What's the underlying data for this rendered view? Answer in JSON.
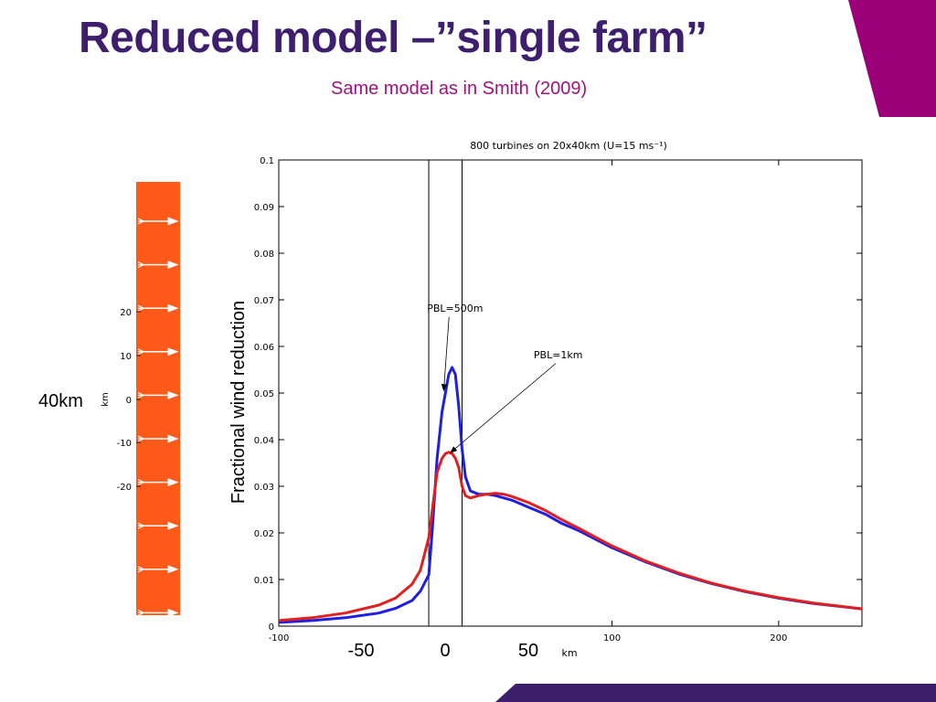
{
  "slide": {
    "title": "Reduced model –”single farm”",
    "subtitle": "Same model as in Smith (2009)",
    "accent_color": "#3d1f6e",
    "subtitle_color": "#a0127f",
    "corner_color": "#9b0079"
  },
  "farm_panel": {
    "color": "#ff5a1a",
    "arrow_color": "#ffffff",
    "arrow_count": 10,
    "size_label": "40km",
    "axis_unit": "km",
    "ticks": [
      "20",
      "10",
      "0",
      "-10",
      "-20"
    ]
  },
  "overlay_labels": {
    "x_neg50": "-50",
    "x_0": "0",
    "x_50": "50",
    "x_unit": "km"
  },
  "chart_data": {
    "type": "line",
    "title": "800 turbines on 20x40km (U=15 ms⁻¹)",
    "xlabel": "km",
    "ylabel": "Fractional wind reduction",
    "xlim": [
      -100,
      250
    ],
    "ylim": [
      0,
      0.1
    ],
    "grid": false,
    "x_ticks": [
      "-100",
      "100",
      "200"
    ],
    "x_tick_values": [
      -100,
      100,
      200
    ],
    "y_ticks": [
      "0",
      "0.01",
      "0.02",
      "0.03",
      "0.04",
      "0.05",
      "0.06",
      "0.07",
      "0.08",
      "0.09",
      "0.1"
    ],
    "y_tick_values": [
      0,
      0.01,
      0.02,
      0.03,
      0.04,
      0.05,
      0.06,
      0.07,
      0.08,
      0.09,
      0.1
    ],
    "farm_bounds": [
      -10,
      10
    ],
    "series": [
      {
        "name": "PBL=500m",
        "color": "#1f1fe0",
        "x": [
          -100,
          -80,
          -60,
          -40,
          -30,
          -20,
          -15,
          -10,
          -8,
          -5,
          -2,
          0,
          2,
          4,
          6,
          8,
          10,
          12,
          15,
          20,
          25,
          30,
          40,
          50,
          60,
          70,
          80,
          100,
          120,
          140,
          160,
          180,
          200,
          220,
          250
        ],
        "y": [
          0.0008,
          0.0012,
          0.0018,
          0.0028,
          0.0038,
          0.0055,
          0.0075,
          0.011,
          0.02,
          0.036,
          0.046,
          0.05,
          0.054,
          0.0555,
          0.054,
          0.047,
          0.038,
          0.032,
          0.029,
          0.0283,
          0.0283,
          0.028,
          0.027,
          0.0255,
          0.024,
          0.022,
          0.0205,
          0.0168,
          0.0138,
          0.0112,
          0.0091,
          0.0074,
          0.006,
          0.0049,
          0.0037
        ]
      },
      {
        "name": "PBL=1km",
        "color": "#e01f1f",
        "x": [
          -100,
          -80,
          -60,
          -40,
          -30,
          -20,
          -15,
          -10,
          -5,
          -2,
          0,
          2,
          4,
          6,
          8,
          10,
          12,
          15,
          20,
          25,
          30,
          35,
          40,
          50,
          60,
          70,
          80,
          100,
          120,
          140,
          160,
          180,
          200,
          220,
          250
        ],
        "y": [
          0.0012,
          0.0018,
          0.0028,
          0.0045,
          0.006,
          0.009,
          0.012,
          0.019,
          0.033,
          0.036,
          0.037,
          0.0373,
          0.037,
          0.036,
          0.034,
          0.03,
          0.028,
          0.0275,
          0.028,
          0.0283,
          0.0285,
          0.0283,
          0.0278,
          0.0265,
          0.0248,
          0.0228,
          0.021,
          0.0172,
          0.014,
          0.0114,
          0.0092,
          0.0075,
          0.0061,
          0.005,
          0.0037
        ]
      }
    ],
    "annotations": [
      {
        "text": "PBL=500m",
        "x": -11,
        "y": 0.0675,
        "arrow_to": [
          -1,
          0.0505
        ]
      },
      {
        "text": "PBL=1km",
        "x": 53,
        "y": 0.0575,
        "arrow_to": [
          3,
          0.0372
        ]
      }
    ]
  }
}
